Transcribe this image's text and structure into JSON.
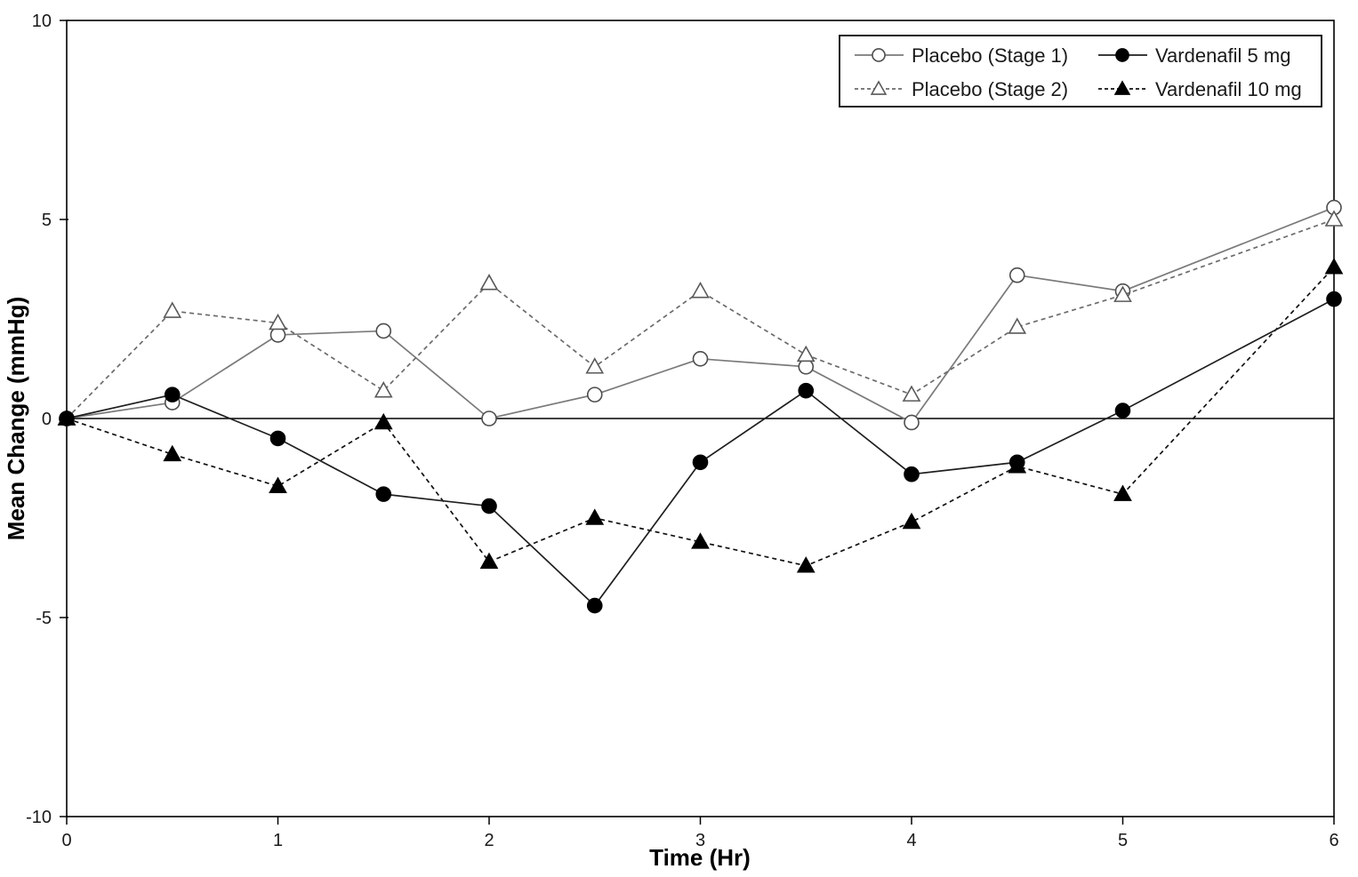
{
  "chart_data": {
    "type": "line",
    "title": "",
    "xlabel": "Time (Hr)",
    "ylabel": "Mean Change (mmHg)",
    "xlim": [
      0,
      6
    ],
    "ylim": [
      -10,
      10
    ],
    "x_ticks": [
      0,
      1,
      2,
      3,
      4,
      5,
      6
    ],
    "y_ticks": [
      10,
      5,
      0,
      -5,
      -10
    ],
    "zero_line": true,
    "grid": false,
    "legend_position": "top-right",
    "x": [
      0,
      0.5,
      1,
      1.5,
      2,
      2.5,
      3,
      3.5,
      4,
      4.5,
      5,
      6
    ],
    "series": [
      {
        "name": "Placebo (Stage 1)",
        "marker": "open-circle",
        "line_style": "solid",
        "line_color": "#7a7a7a",
        "marker_color": "#4d4d4d",
        "values": [
          0,
          0.4,
          2.1,
          2.2,
          0.0,
          0.6,
          1.5,
          1.3,
          -0.1,
          3.6,
          3.2,
          5.3
        ]
      },
      {
        "name": "Placebo (Stage 2)",
        "marker": "open-triangle",
        "line_style": "dashed",
        "line_color": "#6b6b6b",
        "marker_color": "#595959",
        "values": [
          0,
          2.7,
          2.4,
          0.7,
          3.4,
          1.3,
          3.2,
          1.6,
          0.6,
          2.3,
          3.1,
          5.0
        ]
      },
      {
        "name": "Vardenafil 5 mg",
        "marker": "filled-circle",
        "line_style": "solid",
        "line_color": "#1f1f1f",
        "marker_color": "#000000",
        "values": [
          0,
          0.6,
          -0.5,
          -1.9,
          -2.2,
          -4.7,
          -1.1,
          0.7,
          -1.4,
          -1.1,
          0.2,
          3.0
        ]
      },
      {
        "name": "Vardenafil 10 mg",
        "marker": "filled-triangle",
        "line_style": "dashed",
        "line_color": "#111111",
        "marker_color": "#000000",
        "values": [
          0,
          -0.9,
          -1.7,
          -0.1,
          -3.6,
          -2.5,
          -3.1,
          -3.7,
          -2.6,
          -1.2,
          -1.9,
          3.8
        ]
      }
    ]
  }
}
